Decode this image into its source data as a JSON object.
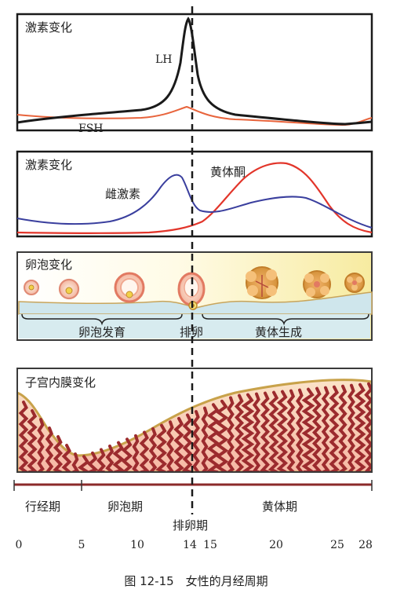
{
  "panels": {
    "lh_fsh": {
      "title": "激素变化",
      "lh_label": "LH",
      "fsh_label": "FSH"
    },
    "estrogen_progesterone": {
      "title": "激素变化",
      "estrogen_label": "雌激素",
      "progesterone_label": "黄体酮"
    },
    "follicle": {
      "title": "卵泡变化",
      "stage_development": "卵泡发育",
      "stage_ovulation": "排卵",
      "stage_corpus_luteum": "黄体生成"
    },
    "endometrium": {
      "title": "子宫内膜变化"
    }
  },
  "phases": {
    "menstrual": "行经期",
    "follicular": "卵泡期",
    "ovulation": "排卵期",
    "luteal": "黄体期"
  },
  "day_ticks": [
    "0",
    "5",
    "10",
    "14",
    "15",
    "20",
    "25",
    "28"
  ],
  "caption": "图 12-15　女性的月经周期",
  "colors": {
    "lh": "#1a1a1a",
    "fsh": "#e8643c",
    "estrogen": "#3a3f9e",
    "progesterone": "#e2352a",
    "endometrium": "#9c2b2e",
    "ovary_band": "#cfe6ec"
  }
}
